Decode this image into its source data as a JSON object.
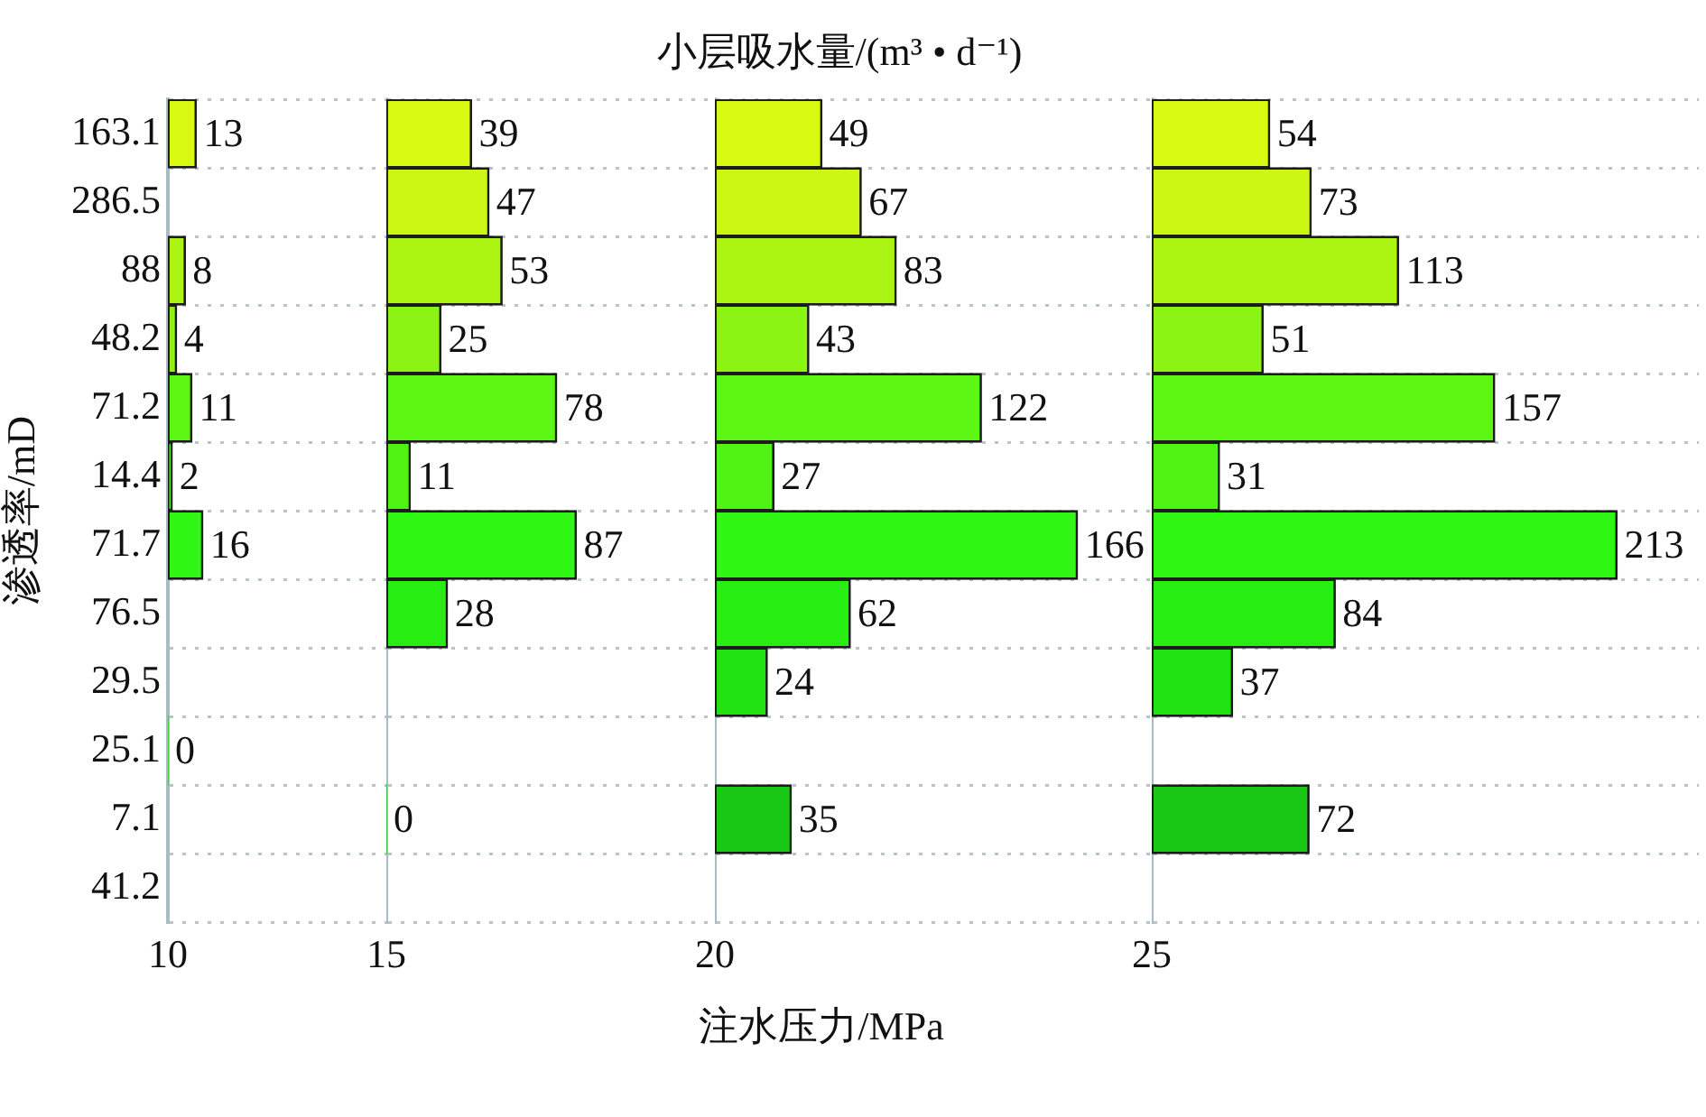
{
  "chart_data": [
    {
      "type": "bar",
      "orientation": "horizontal",
      "ylabel": "渗透率/mD",
      "xlabel": "10",
      "annotations": [
        "小层吸水量/(m³ • d⁻¹)",
        "注水压力/MPa"
      ],
      "categories": [
        "163.1",
        "286.5",
        "88",
        "48.2",
        "71.2",
        "14.4",
        "71.7",
        "76.5",
        "29.5",
        "25.1",
        "7.1",
        "41.2"
      ],
      "colors": [
        "#d8fa10",
        "#ccf614",
        "#acf414",
        "#8cf414",
        "#5cf614",
        "#50f414",
        "#30f614",
        "#28ee14",
        "#22e214",
        "#1cd414",
        "#18c814",
        "#14bc10"
      ],
      "values": [
        13,
        null,
        8,
        4,
        11,
        2,
        16,
        null,
        null,
        0,
        null,
        null
      ],
      "data_labels": true,
      "grid": "y",
      "tick_labels": "y"
    },
    {
      "type": "bar",
      "orientation": "horizontal",
      "xlabel": "15",
      "categories": [
        "163.1",
        "286.5",
        "88",
        "48.2",
        "71.2",
        "14.4",
        "71.7",
        "76.5",
        "29.5",
        "25.1",
        "7.1",
        "41.2"
      ],
      "colors": [
        "#d8fa10",
        "#ccf614",
        "#acf414",
        "#8cf414",
        "#5cf614",
        "#50f414",
        "#30f614",
        "#28ee14",
        "#22e214",
        "#1cd414",
        "#18c814",
        "#14bc10"
      ],
      "values": [
        39,
        47,
        53,
        25,
        78,
        11,
        87,
        28,
        null,
        null,
        0,
        null
      ],
      "data_labels": true,
      "grid": "y",
      "tick_labels": false
    },
    {
      "type": "bar",
      "orientation": "horizontal",
      "xlabel": "20",
      "categories": [
        "163.1",
        "286.5",
        "88",
        "48.2",
        "71.2",
        "14.4",
        "71.7",
        "76.5",
        "29.5",
        "25.1",
        "7.1",
        "41.2"
      ],
      "colors": [
        "#d8fa10",
        "#ccf614",
        "#acf414",
        "#8cf414",
        "#5cf614",
        "#50f414",
        "#30f614",
        "#28ee14",
        "#22e214",
        "#1cd414",
        "#18c814",
        "#14bc10"
      ],
      "values": [
        49,
        67,
        83,
        43,
        122,
        27,
        166,
        62,
        24,
        null,
        35,
        null
      ],
      "data_labels": true,
      "grid": "y",
      "tick_labels": false
    },
    {
      "type": "bar",
      "orientation": "horizontal",
      "xlabel": "25",
      "categories": [
        "163.1",
        "286.5",
        "88",
        "48.2",
        "71.2",
        "14.4",
        "71.7",
        "76.5",
        "29.5",
        "25.1",
        "7.1",
        "41.2"
      ],
      "colors": [
        "#d8fa10",
        "#ccf614",
        "#acf414",
        "#8cf414",
        "#5cf614",
        "#50f414",
        "#30f614",
        "#28ee14",
        "#22e214",
        "#1cd414",
        "#18c814",
        "#14bc10"
      ],
      "values": [
        54,
        73,
        113,
        51,
        157,
        31,
        213,
        84,
        37,
        null,
        72,
        null
      ],
      "data_labels": true,
      "grid": "y",
      "tick_labels": false
    }
  ]
}
